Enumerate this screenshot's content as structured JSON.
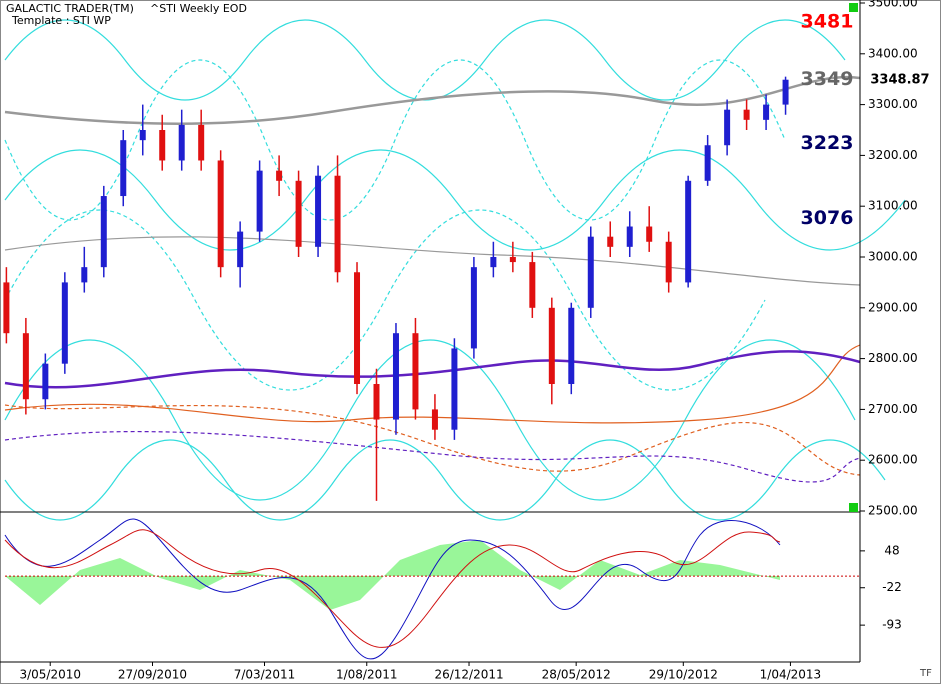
{
  "header": {
    "product": "GALACTIC TRADER(TM)",
    "symbol": "^STI Weekly EOD",
    "template": "Template : STI WP",
    "corner": "TF"
  },
  "chart_data": {
    "type": "candlestick",
    "x": [
      "2010-03-01",
      "2010-03-29",
      "2010-04-26",
      "2010-05-24",
      "2010-06-21",
      "2010-07-19",
      "2010-08-16",
      "2010-09-13",
      "2010-10-11",
      "2010-11-08",
      "2010-12-06",
      "2011-01-03",
      "2011-01-31",
      "2011-02-28",
      "2011-03-28",
      "2011-04-25",
      "2011-05-23",
      "2011-06-20",
      "2011-07-18",
      "2011-08-15",
      "2011-09-12",
      "2011-10-10",
      "2011-11-07",
      "2011-12-05",
      "2012-01-02",
      "2012-01-30",
      "2012-02-27",
      "2012-03-26",
      "2012-04-23",
      "2012-05-21",
      "2012-06-18",
      "2012-07-16",
      "2012-08-13",
      "2012-09-10",
      "2012-10-08",
      "2012-11-05",
      "2012-12-03",
      "2012-12-31",
      "2013-01-28",
      "2013-02-25",
      "2013-03-25"
    ],
    "open": [
      2950,
      2850,
      2720,
      2790,
      2950,
      2980,
      3120,
      3230,
      3250,
      3190,
      3260,
      3190,
      2980,
      3050,
      3170,
      3150,
      3020,
      3160,
      2970,
      2750,
      2680,
      2850,
      2700,
      2660,
      2820,
      2980,
      3000,
      2990,
      2900,
      2750,
      2900,
      3040,
      3020,
      3060,
      3030,
      2950,
      3150,
      3220,
      3290,
      3270,
      3300
    ],
    "high": [
      2980,
      2880,
      2810,
      2970,
      3020,
      3140,
      3250,
      3300,
      3280,
      3290,
      3290,
      3210,
      3070,
      3190,
      3200,
      3170,
      3180,
      3200,
      2990,
      2780,
      2870,
      2880,
      2730,
      2840,
      3000,
      3030,
      3030,
      3010,
      2920,
      2910,
      3060,
      3070,
      3090,
      3100,
      3050,
      3160,
      3240,
      3310,
      3310,
      3320,
      3355
    ],
    "low": [
      2830,
      2690,
      2700,
      2770,
      2930,
      2960,
      3100,
      3200,
      3170,
      3170,
      3170,
      2960,
      2940,
      3030,
      3120,
      3000,
      3000,
      2950,
      2730,
      2520,
      2650,
      2680,
      2640,
      2640,
      2800,
      2960,
      2970,
      2880,
      2710,
      2730,
      2880,
      3000,
      3000,
      3010,
      2930,
      2940,
      3140,
      3200,
      3250,
      3250,
      3280
    ],
    "close": [
      2850,
      2720,
      2790,
      2950,
      2980,
      3120,
      3230,
      3250,
      3190,
      3260,
      3190,
      2980,
      3050,
      3170,
      3150,
      3020,
      3160,
      2970,
      2750,
      2680,
      2850,
      2700,
      2660,
      2820,
      2980,
      3000,
      2990,
      2900,
      2750,
      2900,
      3040,
      3020,
      3060,
      3030,
      2950,
      3150,
      3220,
      3290,
      3270,
      3300,
      3349
    ],
    "up_color": "#1f1fd0",
    "down_color": "#e01010",
    "xlim": [
      "2010-02-27",
      "2013-07-10"
    ],
    "xticks": [
      {
        "value": "2010-05-03",
        "label": "3/05/2010"
      },
      {
        "value": "2010-09-27",
        "label": "27/09/2010"
      },
      {
        "value": "2011-03-07",
        "label": "7/03/2011"
      },
      {
        "value": "2011-08-01",
        "label": "1/08/2011"
      },
      {
        "value": "2011-12-26",
        "label": "26/12/2011"
      },
      {
        "value": "2012-05-28",
        "label": "28/05/2012"
      },
      {
        "value": "2012-10-29",
        "label": "29/10/2012"
      },
      {
        "value": "2013-04-01",
        "label": "1/04/2013"
      }
    ],
    "ylim": [
      2500,
      3500
    ],
    "yticks": [
      {
        "value": 2500,
        "label": "2500.00"
      },
      {
        "value": 2600,
        "label": "2600.00"
      },
      {
        "value": 2700,
        "label": "2700.00"
      },
      {
        "value": 2800,
        "label": "2800.00"
      },
      {
        "value": 2900,
        "label": "2900.00"
      },
      {
        "value": 3000,
        "label": "3000.00"
      },
      {
        "value": 3100,
        "label": "3100.00"
      },
      {
        "value": 3200,
        "label": "3200.00"
      },
      {
        "value": 3300,
        "label": "3300.00"
      },
      {
        "value": 3400,
        "label": "3400.00"
      },
      {
        "value": 3500,
        "label": "3500.00"
      }
    ],
    "last_price": 3348.87,
    "annotations": [
      {
        "value": 3481,
        "color": "#ff0000"
      },
      {
        "value": 3349,
        "color": "#666666"
      },
      {
        "value": 3223,
        "color": "#000066"
      },
      {
        "value": 3076,
        "color": "#000066"
      }
    ],
    "indicator": {
      "ylim": [
        -163,
        118
      ],
      "yticks": [
        48,
        -22,
        -93
      ]
    }
  }
}
